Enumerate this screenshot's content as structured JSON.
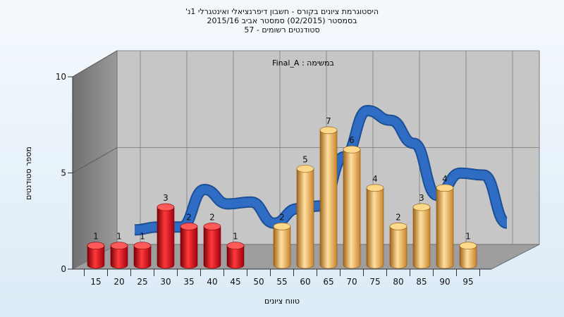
{
  "chart_data": {
    "type": "bar",
    "title_lines": [
      "היסטוגרמת ציונים בקורס - חשבון דיפרנציאלי ואינטגרלי 1נ'",
      "בסמסטר  (02/2015)  סמסטר אביב 2015/16",
      "סטודנטים רשומים - 57"
    ],
    "annotation": "במשימה : Final_A",
    "xlabel": "טווח ציונים",
    "ylabel": "מספר סטודנטים",
    "x_ticks": [
      "15",
      "20",
      "25",
      "30",
      "35",
      "40",
      "45",
      "50",
      "55",
      "60",
      "65",
      "70",
      "75",
      "80",
      "85",
      "90",
      "95"
    ],
    "y_ticks": [
      "0",
      "5",
      "10"
    ],
    "ylim": [
      0,
      10
    ],
    "bars": [
      {
        "x": 15,
        "value": 1,
        "label": "1",
        "group": "fail"
      },
      {
        "x": 20,
        "value": 1,
        "label": "1",
        "group": "fail"
      },
      {
        "x": 25,
        "value": 1,
        "label": "1",
        "group": "fail"
      },
      {
        "x": 30,
        "value": 3,
        "label": "3",
        "group": "fail"
      },
      {
        "x": 35,
        "value": 2,
        "label": "2",
        "group": "fail"
      },
      {
        "x": 40,
        "value": 2,
        "label": "2",
        "group": "fail"
      },
      {
        "x": 45,
        "value": 1,
        "label": "1",
        "group": "fail"
      },
      {
        "x": 55,
        "value": 2,
        "label": "2",
        "group": "pass"
      },
      {
        "x": 60,
        "value": 5,
        "label": "5",
        "group": "pass"
      },
      {
        "x": 65,
        "value": 7,
        "label": "7",
        "group": "pass"
      },
      {
        "x": 70,
        "value": 6,
        "label": "6",
        "group": "pass"
      },
      {
        "x": 75,
        "value": 4,
        "label": "4",
        "group": "pass"
      },
      {
        "x": 80,
        "value": 2,
        "label": "2",
        "group": "pass"
      },
      {
        "x": 85,
        "value": 3,
        "label": "3",
        "group": "pass"
      },
      {
        "x": 90,
        "value": 4,
        "label": "4",
        "group": "pass"
      },
      {
        "x": 95,
        "value": 1,
        "label": "1",
        "group": "pass"
      }
    ],
    "trend_line": [
      {
        "x": 20,
        "y": 1.6
      },
      {
        "x": 25,
        "y": 1.75
      },
      {
        "x": 30,
        "y": 1.75
      },
      {
        "x": 35,
        "y": 3.7
      },
      {
        "x": 40,
        "y": 2.95
      },
      {
        "x": 45,
        "y": 3.05
      },
      {
        "x": 50,
        "y": 1.95
      },
      {
        "x": 55,
        "y": 2.7
      },
      {
        "x": 60,
        "y": 2.85
      },
      {
        "x": 65,
        "y": 5.4
      },
      {
        "x": 70,
        "y": 7.8
      },
      {
        "x": 75,
        "y": 7.3
      },
      {
        "x": 80,
        "y": 6.1
      },
      {
        "x": 85,
        "y": 3.4
      },
      {
        "x": 90,
        "y": 4.55
      },
      {
        "x": 95,
        "y": 4.45
      },
      {
        "x": 100,
        "y": 1.95
      }
    ],
    "colors": {
      "fail": "#e0141e",
      "pass": "#f0a840",
      "trend": "#2f6dc4",
      "wall": "#c4c4c4",
      "side_wall": "#8a8a8a",
      "floor": "#9c9c9c"
    },
    "grid": true
  }
}
